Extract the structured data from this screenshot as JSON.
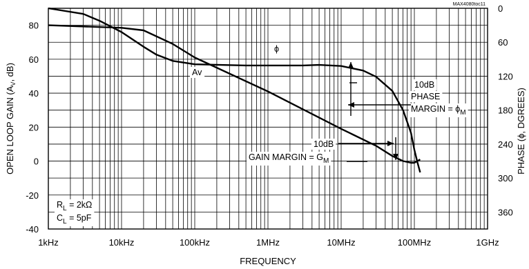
{
  "chart_data": {
    "type": "line",
    "code": "MAX4080toc11",
    "xlabel": "FREQUENCY",
    "ylabel": "OPEN LOOP GAIN (AV, dB)",
    "ylabel_parts": {
      "pre": "OPEN LOOP GAIN (A",
      "sub": "V",
      "post": ", dB)"
    },
    "y2label": "PHASE (ϕ, DGREES)",
    "x_scale": "log",
    "xlim": [
      1000,
      1000000000
    ],
    "ylim": [
      -40,
      90
    ],
    "y2lim": [
      0,
      390
    ],
    "y2_inverted": true,
    "x_ticks": [
      {
        "value": 1000,
        "label": "1kHz"
      },
      {
        "value": 10000,
        "label": "10kHz"
      },
      {
        "value": 100000,
        "label": "100kHz"
      },
      {
        "value": 1000000,
        "label": "1MHz"
      },
      {
        "value": 10000000,
        "label": "10MHz"
      },
      {
        "value": 100000000,
        "label": "100MHz"
      },
      {
        "value": 1000000000,
        "label": "1GHz"
      }
    ],
    "y_ticks": [
      {
        "value": 80,
        "label": "80"
      },
      {
        "value": 60,
        "label": "60"
      },
      {
        "value": 40,
        "label": "40"
      },
      {
        "value": 20,
        "label": "20"
      },
      {
        "value": 0,
        "label": "0"
      },
      {
        "value": -20,
        "label": "-20"
      },
      {
        "value": -40,
        "label": "-40"
      }
    ],
    "y2_ticks": [
      {
        "value": 0,
        "label": "0"
      },
      {
        "value": 60,
        "label": "60"
      },
      {
        "value": 120,
        "label": "120"
      },
      {
        "value": 180,
        "label": "180"
      },
      {
        "value": 240,
        "label": "240"
      },
      {
        "value": 300,
        "label": "300"
      },
      {
        "value": 360,
        "label": "360"
      }
    ],
    "grid": true,
    "series": [
      {
        "name": "Av",
        "axis": "left",
        "x": [
          1000,
          10000,
          20000,
          50000,
          100000,
          1000000,
          10000000,
          30000000,
          50000000,
          70000000,
          90000000,
          100000000,
          110000000,
          120000000
        ],
        "y": [
          80,
          78.5,
          77,
          69,
          61,
          41,
          19,
          9,
          3,
          0,
          -1,
          -1,
          0,
          1
        ]
      },
      {
        "name": "ϕ",
        "axis": "right",
        "x": [
          1000,
          3000,
          5000,
          10000,
          20000,
          30000,
          50000,
          100000,
          500000,
          1000000,
          3000000,
          5000000,
          10000000,
          20000000,
          30000000,
          50000000,
          70000000,
          90000000,
          100000000,
          110000000,
          120000000
        ],
        "y": [
          0,
          10,
          22,
          42,
          68,
          82,
          93,
          99,
          101,
          101,
          101,
          100,
          102,
          110,
          121,
          146,
          180,
          220,
          250,
          272,
          290
        ]
      }
    ],
    "annotations": [
      {
        "id": "av",
        "text": "Av"
      },
      {
        "id": "phi",
        "text": "ϕ"
      },
      {
        "id": "pm1",
        "text": "10dB"
      },
      {
        "id": "pm2",
        "text": "PHASE"
      },
      {
        "id": "pm3",
        "text": "MARGIN = ϕ",
        "sub": "M"
      },
      {
        "id": "gm1",
        "text": "10dB"
      },
      {
        "id": "gm2",
        "text": "GAIN MARGIN = G",
        "sub": "M"
      },
      {
        "id": "rl",
        "text": "R",
        "sub": "L",
        "post": " = 2kΩ"
      },
      {
        "id": "cl",
        "text": "C",
        "sub": "L",
        "post": " = 5pF"
      }
    ]
  }
}
